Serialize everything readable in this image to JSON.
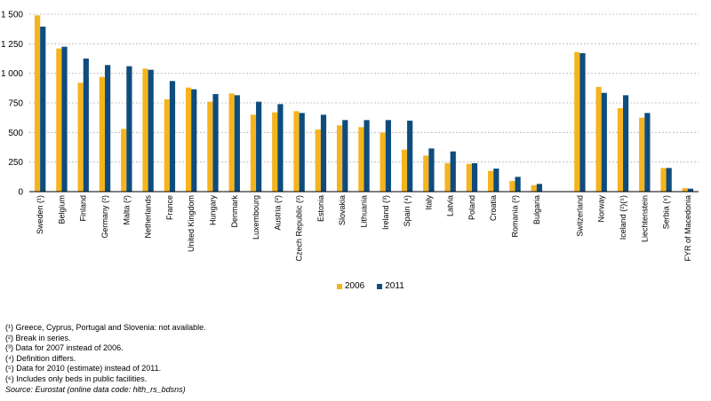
{
  "chart_data": {
    "type": "bar",
    "ylim": [
      0,
      1500
    ],
    "yticks": [
      0,
      250,
      500,
      750,
      1000,
      1250,
      1500
    ],
    "ytick_labels": [
      "0",
      "250",
      "500",
      "750",
      "1 000",
      "1 250",
      "1 500"
    ],
    "grid": "horizontal dashed",
    "legend_position": "bottom-center",
    "categories": [
      "Sweden (¹)",
      "Belgium",
      "Finland",
      "Germany (²)",
      "Malta (²)",
      "Netherlands",
      "France",
      "United Kingdom",
      "Hungary",
      "Denmark",
      "Luxembourg",
      "Austria (²)",
      "Czech Republic (²)",
      "Estonia",
      "Slovakia",
      "Lithuania",
      "Ireland (³)",
      "Spain (⁴)",
      "Italy",
      "Latvia",
      "Poland",
      "Croatia",
      "Romania (²)",
      "Bulgaria",
      "",
      "Switzerland",
      "Norway",
      "Iceland (²)(⁵)",
      "Liechtenstein",
      "Serbia (⁶)",
      "FYR of Macedonia"
    ],
    "series": [
      {
        "name": "2006",
        "color": "#f5b41e",
        "values": [
          1490,
          1210,
          920,
          970,
          530,
          1040,
          780,
          880,
          760,
          830,
          650,
          670,
          680,
          525,
          560,
          545,
          500,
          355,
          305,
          240,
          235,
          175,
          90,
          55,
          null,
          1180,
          885,
          705,
          625,
          200,
          30
        ]
      },
      {
        "name": "2011",
        "color": "#0f4c7e",
        "values": [
          1395,
          1225,
          1125,
          1070,
          1060,
          1030,
          935,
          865,
          825,
          815,
          760,
          740,
          665,
          650,
          605,
          605,
          605,
          600,
          365,
          340,
          240,
          195,
          125,
          65,
          null,
          1170,
          835,
          815,
          665,
          200,
          25
        ]
      }
    ]
  },
  "legend": [
    {
      "label": "2006",
      "color": "#f5b41e"
    },
    {
      "label": "2011",
      "color": "#0f4c7e"
    }
  ],
  "notes": [
    "(¹) Greece, Cyprus, Portugal and Slovenia: not available.",
    "(²) Break in series.",
    "(³) Data for 2007 instead of 2006.",
    "(⁴) Definition differs.",
    "(⁵) Data for 2010 (estimate) instead of 2011.",
    "(⁶) Includes only beds in public facilities."
  ],
  "source": "Source: Eurostat (online data code: hlth_rs_bdsns)"
}
